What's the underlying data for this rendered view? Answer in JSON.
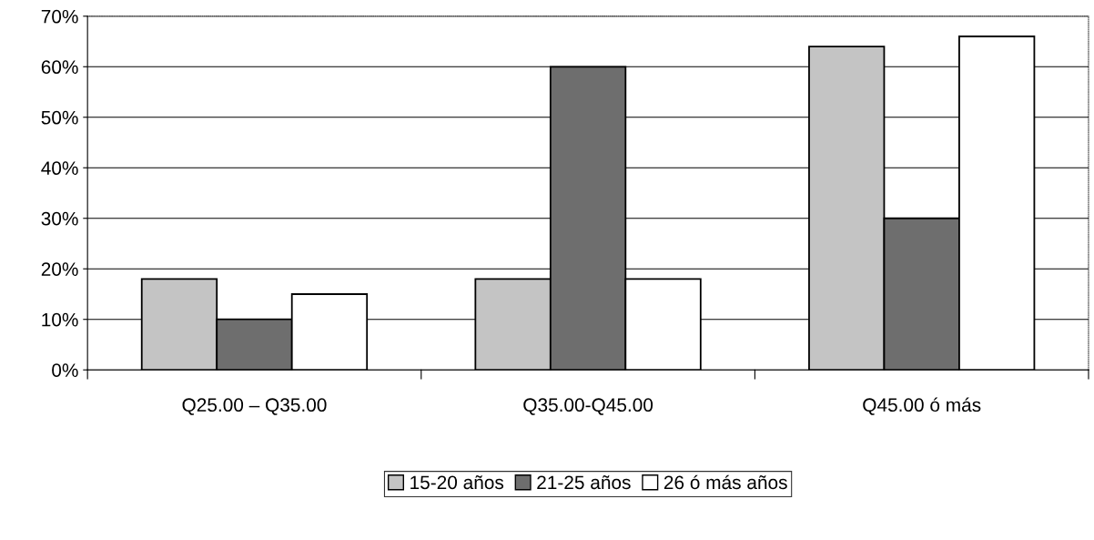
{
  "chart_data": {
    "type": "bar",
    "categories": [
      "Q25.00 – Q35.00",
      "Q35.00-Q45.00",
      "Q45.00 ó más"
    ],
    "series": [
      {
        "name": "15-20 años",
        "color": "#c4c4c4",
        "values": [
          18,
          18,
          64
        ]
      },
      {
        "name": "21-25 años",
        "color": "#6e6e6e",
        "values": [
          10,
          60,
          30
        ]
      },
      {
        "name": "26 ó más años",
        "color": "#ffffff",
        "values": [
          15,
          18,
          66
        ]
      }
    ],
    "ylim": [
      0,
      70
    ],
    "yticks": [
      {
        "value": 0,
        "label": "0%"
      },
      {
        "value": 10,
        "label": "10%"
      },
      {
        "value": 20,
        "label": "20%"
      },
      {
        "value": 30,
        "label": "30%"
      },
      {
        "value": 40,
        "label": "40%"
      },
      {
        "value": 50,
        "label": "50%"
      },
      {
        "value": 60,
        "label": "60%"
      },
      {
        "value": 70,
        "label": "70%"
      }
    ],
    "grid": "y",
    "legend": "bottom"
  }
}
